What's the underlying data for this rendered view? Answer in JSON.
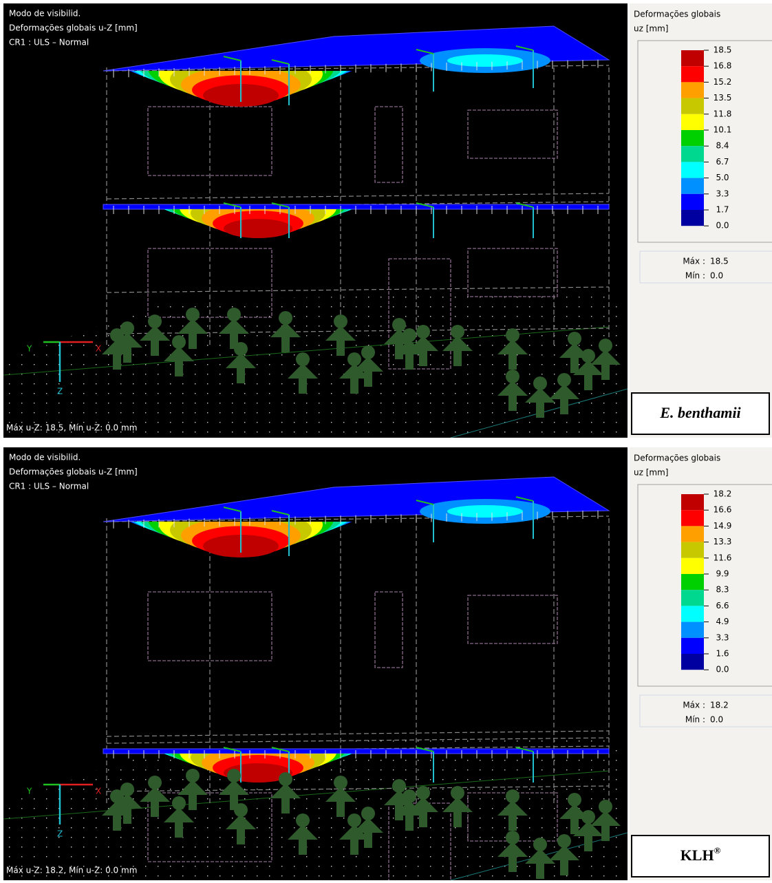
{
  "panels": [
    {
      "info": [
        "Modo de visibilid.",
        "Deformações globais u-Z [mm]",
        "CR1 : ULS – Normal"
      ],
      "footer": "Máx u-Z: 18.5, Mín u-Z: 0.0 mm",
      "triad": [
        "Y",
        "X",
        "Z"
      ],
      "legend": {
        "title": "Deformações globais",
        "unit": "uz [mm]",
        "levels": [
          "18.5",
          "16.8",
          "15.2",
          "13.5",
          "11.8",
          "10.1",
          "8.4",
          "6.7",
          "5.0",
          "3.3",
          "1.7",
          "0.0"
        ],
        "colors": [
          "#c00000",
          "#ff0000",
          "#ffa000",
          "#c8c800",
          "#ffff00",
          "#00d000",
          "#00d890",
          "#00ffff",
          "#0090ff",
          "#0000ff",
          "#0000a0"
        ]
      },
      "summary": [
        {
          "label": "Máx :",
          "value": "18.5"
        },
        {
          "label": "Mín :",
          "value": "0.0"
        }
      ],
      "caption": {
        "text": "E. benthamii",
        "style": "italic"
      }
    },
    {
      "info": [
        "Modo de visibilid.",
        "Deformações globais u-Z [mm]",
        "CR1 : ULS – Normal"
      ],
      "footer": "Máx u-Z: 18.2, Mín u-Z: 0.0 mm",
      "triad": [
        "Y",
        "X",
        "Z"
      ],
      "legend": {
        "title": "Deformações globais",
        "unit": "uz [mm]",
        "levels": [
          "18.2",
          "16.6",
          "14.9",
          "13.3",
          "11.6",
          "9.9",
          "8.3",
          "6.6",
          "4.9",
          "3.3",
          "1.6",
          "0.0"
        ],
        "colors": [
          "#c00000",
          "#ff0000",
          "#ffa000",
          "#c8c800",
          "#ffff00",
          "#00d000",
          "#00d890",
          "#00ffff",
          "#0090ff",
          "#0000ff",
          "#0000a0"
        ]
      },
      "summary": [
        {
          "label": "Máx :",
          "value": "18.2"
        },
        {
          "label": "Mín :",
          "value": "0.0"
        }
      ],
      "caption": {
        "text": "KLH",
        "sup": "®",
        "style": "normal"
      }
    }
  ]
}
